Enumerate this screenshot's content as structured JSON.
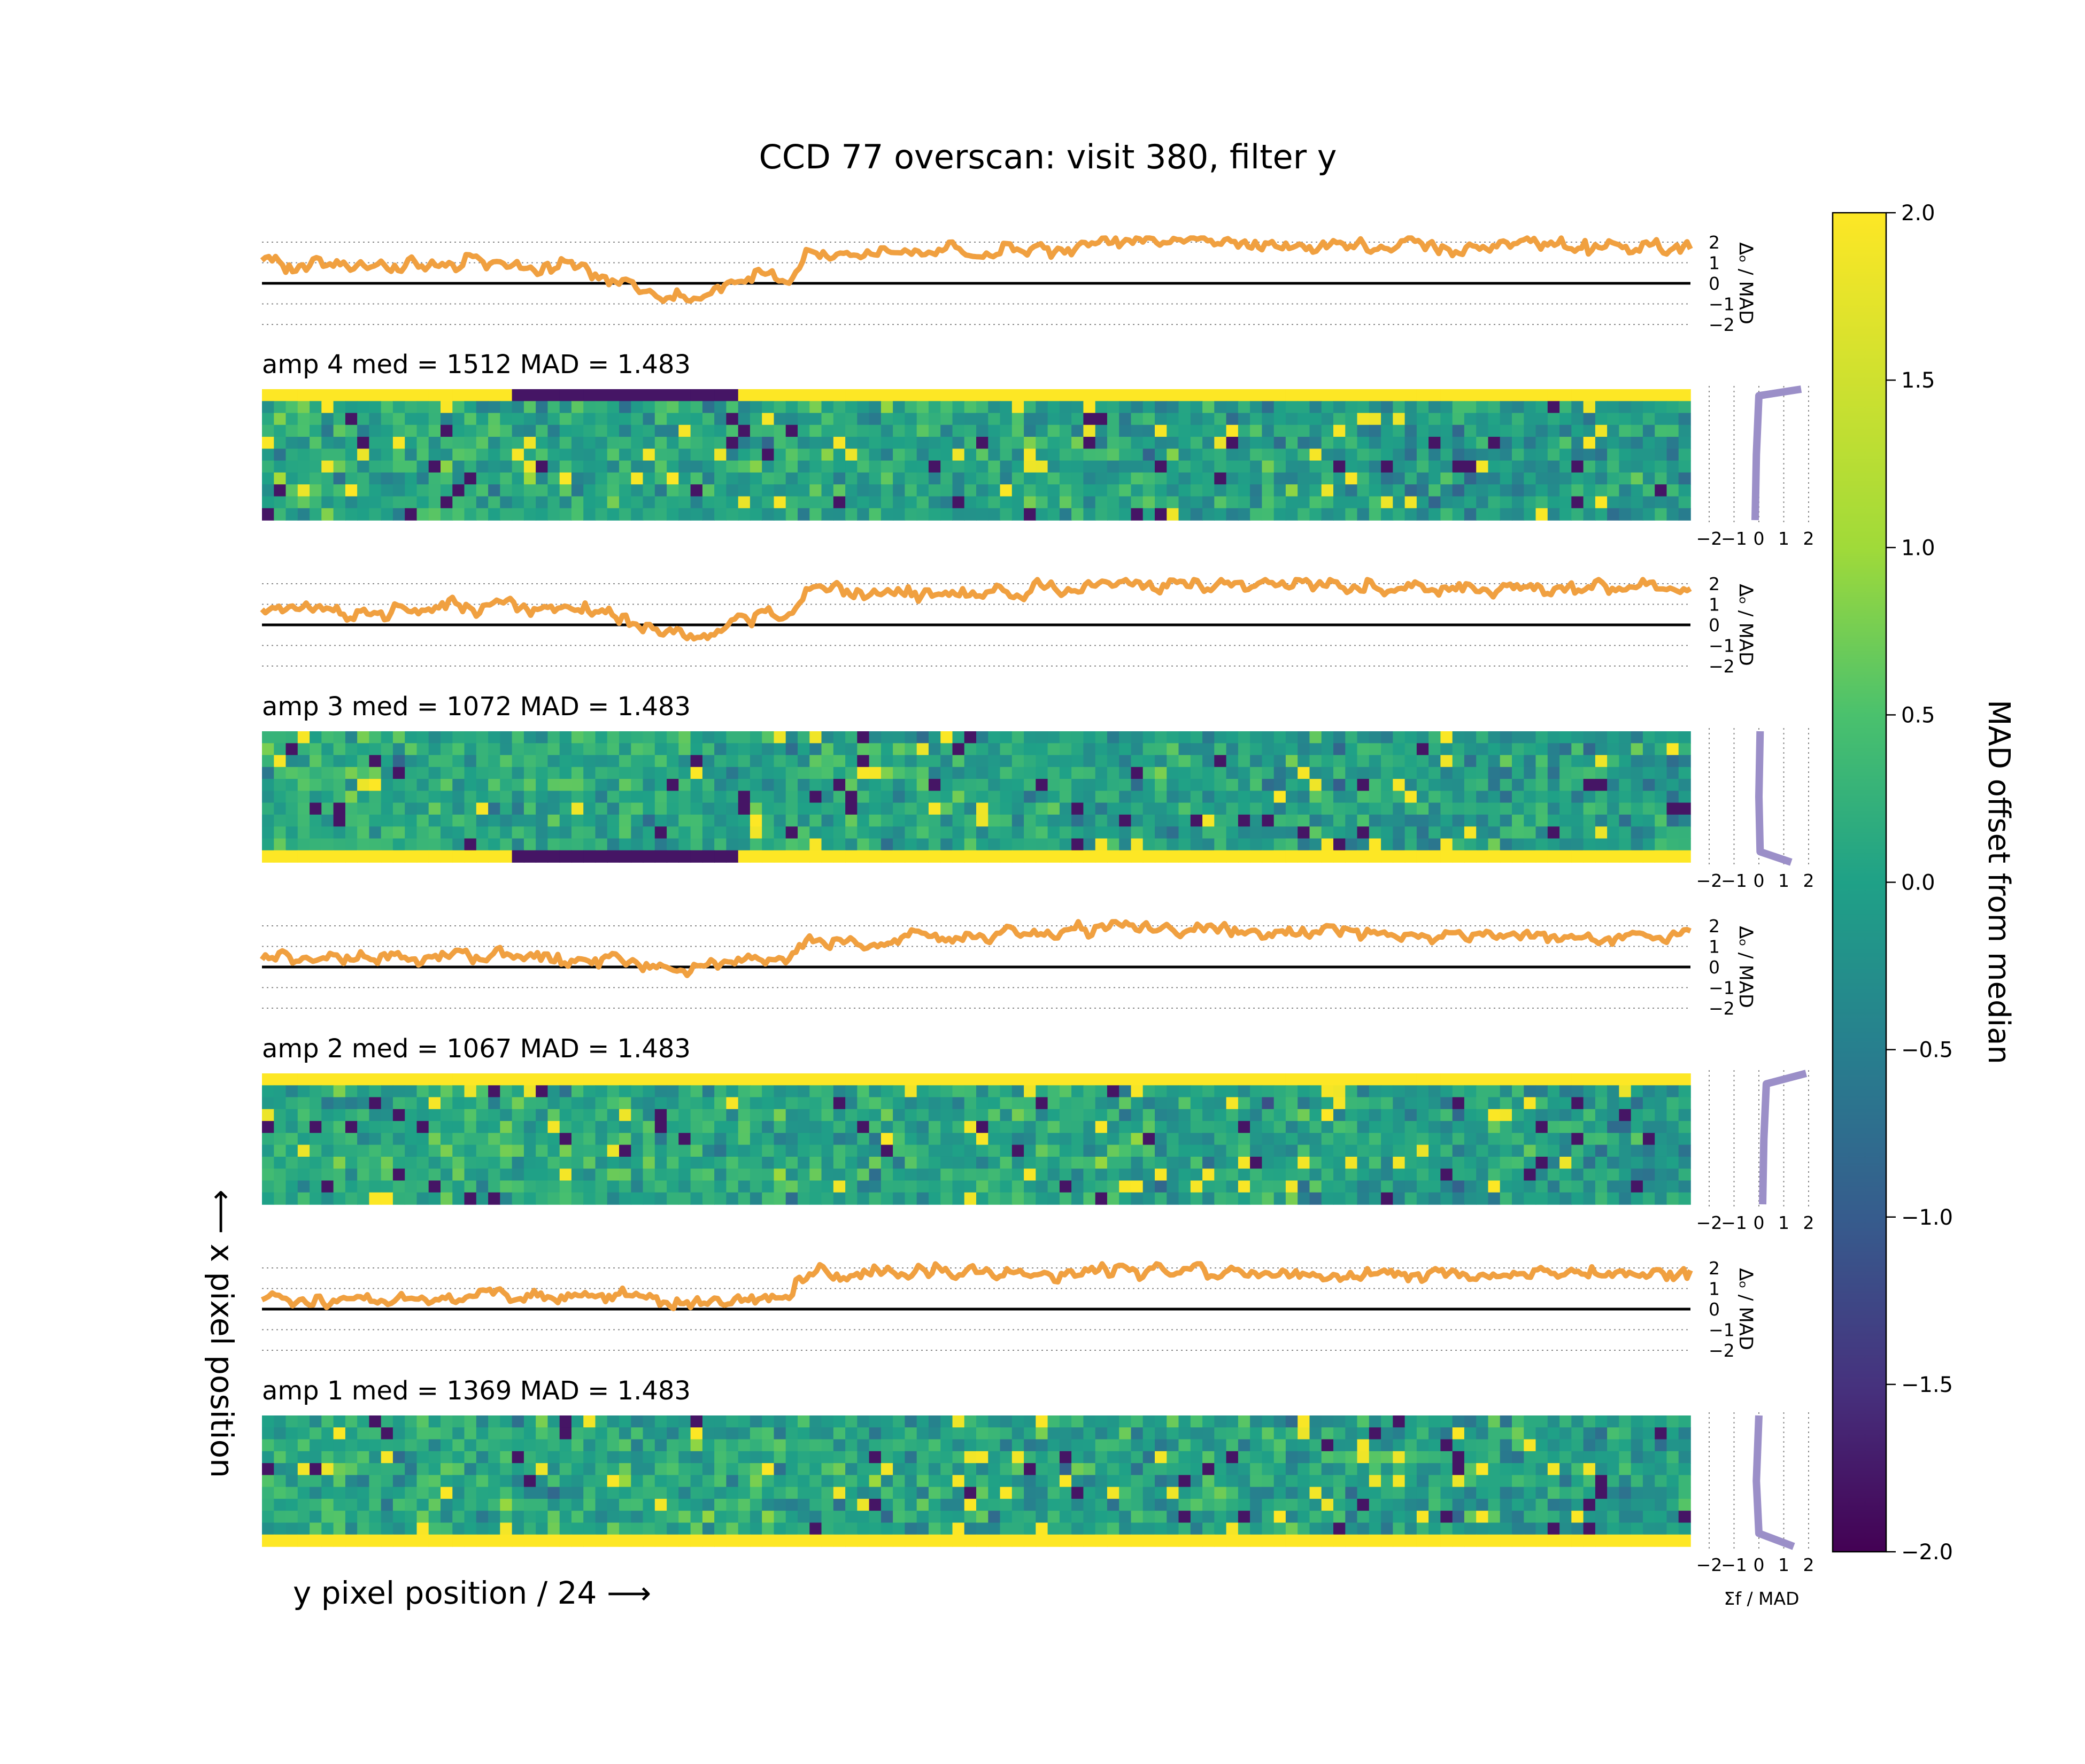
{
  "chart_data": {
    "type": "heatmap",
    "title": "CCD 77 overscan: visit 380, filter y",
    "xlabel": "y pixel position / 24 ⟶",
    "ylabel": "⟵ x pixel position",
    "colorbar": {
      "label": "MAD offset from median",
      "colormap": "viridis",
      "range": [
        -2.0,
        2.0
      ],
      "ticks": [
        "2.0",
        "1.5",
        "1.0",
        "0.5",
        "0.0",
        "−0.5",
        "−1.0",
        "−1.5",
        "−2.0"
      ]
    },
    "line_panel": {
      "ylabel": "Δₒ / MAD",
      "ticks": [
        "2",
        "1",
        "0",
        "−1",
        "−2"
      ],
      "ylim": [
        -2,
        2
      ],
      "color": "#f0a040"
    },
    "side_panel": {
      "xlabel": "Σf / MAD",
      "ticks": [
        "−2",
        "−1",
        "0",
        "1",
        "2"
      ],
      "xlim": [
        -2,
        2
      ],
      "color": "#9b8fc8"
    },
    "amps": [
      {
        "label": "amp 4",
        "med": "1512",
        "mad": "1.483",
        "yellow_edge": "top",
        "trend": [
          [
            0,
            0.95
          ],
          [
            0.1,
            0.8
          ],
          [
            0.16,
            1.05
          ],
          [
            0.21,
            0.7
          ],
          [
            0.25,
            0.2
          ],
          [
            0.28,
            -0.7
          ],
          [
            0.31,
            -0.6
          ],
          [
            0.33,
            0.15
          ],
          [
            0.35,
            0.6
          ],
          [
            0.37,
            0.1
          ],
          [
            0.38,
            1.6
          ],
          [
            0.45,
            1.45
          ],
          [
            0.55,
            1.65
          ],
          [
            0.6,
            2.1
          ],
          [
            0.7,
            1.9
          ],
          [
            0.8,
            1.85
          ],
          [
            0.9,
            1.8
          ],
          [
            1.0,
            1.65
          ]
        ],
        "side_profile": [
          [
            0.0,
            1.7
          ],
          [
            0.05,
            0.0
          ],
          [
            0.5,
            -0.1
          ],
          [
            1.0,
            -0.15
          ]
        ]
      },
      {
        "label": "amp 3",
        "med": "1072",
        "mad": "1.483",
        "yellow_edge": "bottom",
        "trend": [
          [
            0,
            0.6
          ],
          [
            0.1,
            0.7
          ],
          [
            0.16,
            0.9
          ],
          [
            0.21,
            0.7
          ],
          [
            0.25,
            0.3
          ],
          [
            0.28,
            -0.4
          ],
          [
            0.31,
            -0.45
          ],
          [
            0.33,
            0.15
          ],
          [
            0.35,
            0.4
          ],
          [
            0.37,
            0.2
          ],
          [
            0.38,
            1.95
          ],
          [
            0.45,
            1.6
          ],
          [
            0.55,
            1.65
          ],
          [
            0.6,
            2.1
          ],
          [
            0.7,
            1.85
          ],
          [
            0.8,
            1.8
          ],
          [
            0.9,
            1.75
          ],
          [
            1.0,
            1.75
          ]
        ],
        "side_profile": [
          [
            0.0,
            0.05
          ],
          [
            0.5,
            0.0
          ],
          [
            0.92,
            0.05
          ],
          [
            1.0,
            1.3
          ]
        ]
      },
      {
        "label": "amp 2",
        "med": "1067",
        "mad": "1.483",
        "yellow_edge": "top",
        "trend": [
          [
            0,
            0.4
          ],
          [
            0.1,
            0.3
          ],
          [
            0.16,
            0.5
          ],
          [
            0.21,
            0.4
          ],
          [
            0.25,
            0.3
          ],
          [
            0.28,
            0.0
          ],
          [
            0.31,
            0.1
          ],
          [
            0.33,
            0.2
          ],
          [
            0.35,
            0.5
          ],
          [
            0.37,
            0.4
          ],
          [
            0.38,
            1.2
          ],
          [
            0.45,
            1.4
          ],
          [
            0.55,
            1.6
          ],
          [
            0.6,
            2.0
          ],
          [
            0.7,
            1.7
          ],
          [
            0.8,
            1.65
          ],
          [
            0.9,
            1.5
          ],
          [
            1.0,
            1.55
          ]
        ],
        "side_profile": [
          [
            0.0,
            1.9
          ],
          [
            0.08,
            0.3
          ],
          [
            0.5,
            0.2
          ],
          [
            1.0,
            0.15
          ]
        ]
      },
      {
        "label": "amp 1",
        "med": "1369",
        "mad": "1.483",
        "yellow_edge": "bottom",
        "trend": [
          [
            0,
            0.4
          ],
          [
            0.1,
            0.4
          ],
          [
            0.16,
            0.8
          ],
          [
            0.21,
            0.7
          ],
          [
            0.25,
            0.5
          ],
          [
            0.28,
            0.5
          ],
          [
            0.31,
            0.4
          ],
          [
            0.33,
            0.5
          ],
          [
            0.35,
            0.6
          ],
          [
            0.37,
            0.5
          ],
          [
            0.38,
            1.6
          ],
          [
            0.45,
            1.9
          ],
          [
            0.55,
            1.7
          ],
          [
            0.6,
            2.0
          ],
          [
            0.7,
            1.75
          ],
          [
            0.8,
            1.7
          ],
          [
            0.9,
            1.65
          ],
          [
            1.0,
            1.7
          ]
        ],
        "side_profile": [
          [
            0.0,
            0.0
          ],
          [
            0.5,
            -0.1
          ],
          [
            0.9,
            0.0
          ],
          [
            1.0,
            1.4
          ]
        ]
      }
    ]
  }
}
